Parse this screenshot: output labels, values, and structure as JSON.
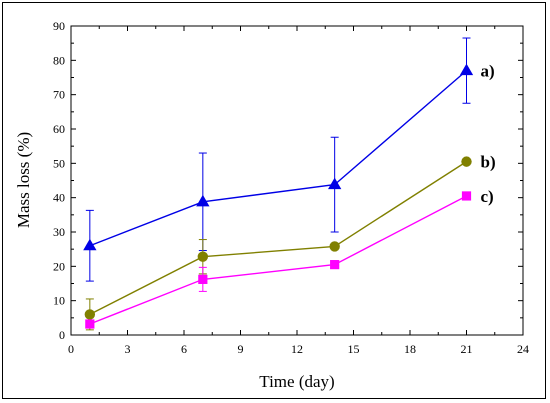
{
  "chart_data": {
    "type": "line",
    "xlabel": "Time (day)",
    "ylabel": "Mass loss (%)",
    "xlim": [
      0,
      24
    ],
    "ylim": [
      0,
      90
    ],
    "xticks": [
      0,
      3,
      6,
      9,
      12,
      15,
      18,
      21,
      24
    ],
    "yticks": [
      0,
      10,
      20,
      30,
      40,
      50,
      60,
      70,
      80,
      90
    ],
    "grid": false,
    "legend": "none",
    "x": [
      1,
      7,
      14,
      21
    ],
    "series": [
      {
        "name": "a)",
        "color": "#0000e6",
        "marker": "triangle",
        "values": [
          26,
          38.8,
          43.8,
          77
        ],
        "error": [
          10.3,
          14.2,
          13.8,
          9.5
        ]
      },
      {
        "name": "b)",
        "color": "#808000",
        "marker": "circle",
        "values": [
          6,
          22.8,
          25.8,
          50.5
        ],
        "error": [
          4.5,
          5.0,
          0,
          0
        ]
      },
      {
        "name": "c)",
        "color": "#ff00ff",
        "marker": "square",
        "values": [
          3.2,
          16.2,
          20.5,
          40.5
        ],
        "error": [
          0,
          3.5,
          0,
          0
        ]
      }
    ]
  }
}
